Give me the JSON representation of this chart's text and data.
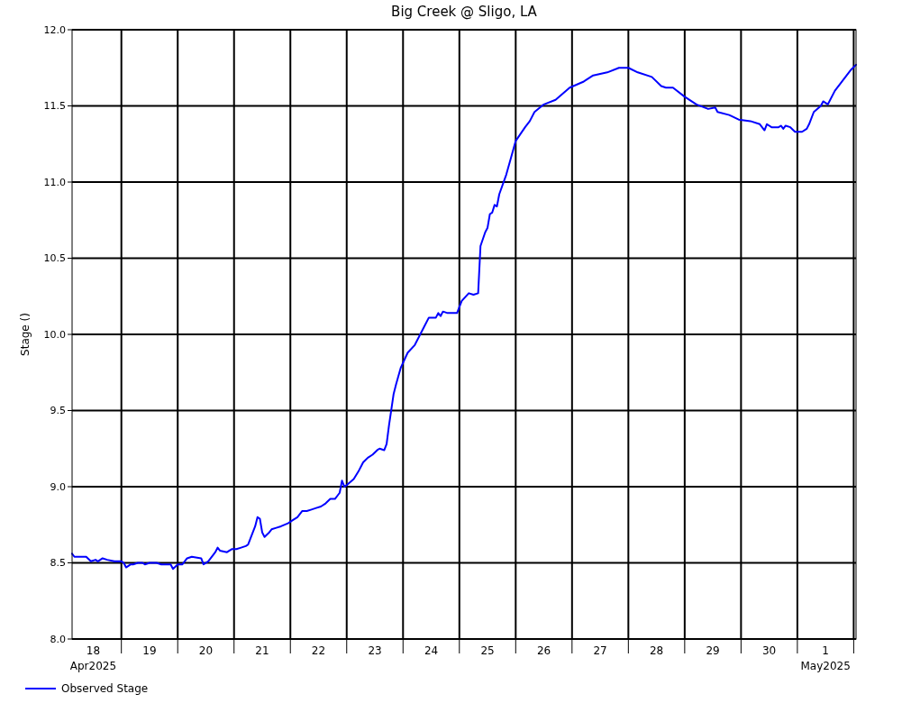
{
  "chart_data": {
    "type": "line",
    "title": "Big Creek @ Sligo, LA",
    "ylabel": "Stage ()",
    "legend": "bottom left",
    "grid": true,
    "marker": "none",
    "line_style": "solid",
    "xlim": [
      "2025-04-18T03:00",
      "2025-05-02T01:00"
    ],
    "xticks": [
      {
        "value": "2025-04-18T12:00",
        "label": "18\nApr2025"
      },
      {
        "value": "2025-04-19T00:00",
        "label": null
      },
      {
        "value": "2025-04-19T12:00",
        "label": "19"
      },
      {
        "value": "2025-04-20T00:00",
        "label": null
      },
      {
        "value": "2025-04-20T12:00",
        "label": "20"
      },
      {
        "value": "2025-04-21T00:00",
        "label": null
      },
      {
        "value": "2025-04-21T12:00",
        "label": "21"
      },
      {
        "value": "2025-04-22T00:00",
        "label": null
      },
      {
        "value": "2025-04-22T12:00",
        "label": "22"
      },
      {
        "value": "2025-04-23T00:00",
        "label": null
      },
      {
        "value": "2025-04-23T12:00",
        "label": "23"
      },
      {
        "value": "2025-04-24T00:00",
        "label": null
      },
      {
        "value": "2025-04-24T12:00",
        "label": "24"
      },
      {
        "value": "2025-04-25T00:00",
        "label": null
      },
      {
        "value": "2025-04-25T12:00",
        "label": "25"
      },
      {
        "value": "2025-04-26T00:00",
        "label": null
      },
      {
        "value": "2025-04-26T12:00",
        "label": "26"
      },
      {
        "value": "2025-04-27T00:00",
        "label": null
      },
      {
        "value": "2025-04-27T12:00",
        "label": "27"
      },
      {
        "value": "2025-04-28T00:00",
        "label": null
      },
      {
        "value": "2025-04-28T12:00",
        "label": "28"
      },
      {
        "value": "2025-04-29T00:00",
        "label": null
      },
      {
        "value": "2025-04-29T12:00",
        "label": "29"
      },
      {
        "value": "2025-04-30T00:00",
        "label": null
      },
      {
        "value": "2025-04-30T12:00",
        "label": "30"
      },
      {
        "value": "2025-05-01T00:00",
        "label": null
      },
      {
        "value": "2025-05-01T12:00",
        "label": "1\nMay2025"
      },
      {
        "value": "2025-05-02T00:00",
        "label": null
      }
    ],
    "ylim": [
      8,
      12
    ],
    "yticks": [
      {
        "value": 8,
        "label": "8.0"
      },
      8.5,
      {
        "value": 9,
        "label": "9.0"
      },
      9.5,
      {
        "value": 10,
        "label": "10.0"
      },
      10.5,
      {
        "value": 11,
        "label": "11.0"
      },
      11.5,
      {
        "value": 12,
        "label": "12.0"
      }
    ],
    "series": [
      {
        "name": "Observed Stage",
        "color": "#0000ff",
        "x": [
          "2025-04-18T03:00",
          "2025-04-18T04:00",
          "2025-04-18T07:00",
          "2025-04-18T09:00",
          "2025-04-18T11:00",
          "2025-04-18T13:00",
          "2025-04-18T14:00",
          "2025-04-18T16:00",
          "2025-04-18T18:00",
          "2025-04-18T21:00",
          "2025-04-19T00:00",
          "2025-04-19T01:00",
          "2025-04-19T02:00",
          "2025-04-19T04:00",
          "2025-04-19T05:00",
          "2025-04-19T07:00",
          "2025-04-19T09:00",
          "2025-04-19T10:00",
          "2025-04-19T12:00",
          "2025-04-19T15:00",
          "2025-04-19T17:00",
          "2025-04-19T19:00",
          "2025-04-19T21:00",
          "2025-04-19T22:00",
          "2025-04-20T00:00",
          "2025-04-20T02:00",
          "2025-04-20T04:00",
          "2025-04-20T06:00",
          "2025-04-20T10:00",
          "2025-04-20T11:00",
          "2025-04-20T13:00",
          "2025-04-20T15:00",
          "2025-04-20T16:00",
          "2025-04-20T17:00",
          "2025-04-20T18:00",
          "2025-04-20T21:00",
          "2025-04-20T23:00",
          "2025-04-21T01:00",
          "2025-04-21T03:00",
          "2025-04-21T05:00",
          "2025-04-21T06:00",
          "2025-04-21T07:00",
          "2025-04-21T09:00",
          "2025-04-21T10:00",
          "2025-04-21T11:00",
          "2025-04-21T12:00",
          "2025-04-21T13:00",
          "2025-04-21T15:00",
          "2025-04-21T16:00",
          "2025-04-21T18:00",
          "2025-04-21T20:00",
          "2025-04-21T23:00",
          "2025-04-22T01:00",
          "2025-04-22T03:00",
          "2025-04-22T05:00",
          "2025-04-22T07:00",
          "2025-04-22T09:00",
          "2025-04-22T11:00",
          "2025-04-22T13:00",
          "2025-04-22T15:00",
          "2025-04-22T17:00",
          "2025-04-22T19:00",
          "2025-04-22T21:00",
          "2025-04-22T22:00",
          "2025-04-22T23:00",
          "2025-04-23T00:00",
          "2025-04-23T03:00",
          "2025-04-23T05:00",
          "2025-04-23T07:00",
          "2025-04-23T09:00",
          "2025-04-23T11:00",
          "2025-04-23T13:00",
          "2025-04-23T14:00",
          "2025-04-23T16:00",
          "2025-04-23T17:00",
          "2025-04-23T18:00",
          "2025-04-23T20:00",
          "2025-04-23T21:00",
          "2025-04-23T23:00",
          "2025-04-24T02:00",
          "2025-04-24T05:00",
          "2025-04-24T09:00",
          "2025-04-24T11:00",
          "2025-04-24T14:00",
          "2025-04-24T15:00",
          "2025-04-24T16:00",
          "2025-04-24T17:00",
          "2025-04-24T19:00",
          "2025-04-24T23:00",
          "2025-04-25T01:00",
          "2025-04-25T04:00",
          "2025-04-25T06:00",
          "2025-04-25T08:00",
          "2025-04-25T09:00",
          "2025-04-25T11:00",
          "2025-04-25T12:00",
          "2025-04-25T13:00",
          "2025-04-25T14:00",
          "2025-04-25T15:00",
          "2025-04-25T16:00",
          "2025-04-25T17:00",
          "2025-04-25T20:00",
          "2025-04-25T22:00",
          "2025-04-26T00:00",
          "2025-04-26T04:00",
          "2025-04-26T06:00",
          "2025-04-26T08:00",
          "2025-04-26T12:00",
          "2025-04-26T17:00",
          "2025-04-26T23:00",
          "2025-04-27T05:00",
          "2025-04-27T09:00",
          "2025-04-27T15:00",
          "2025-04-27T20:00",
          "2025-04-28T00:00",
          "2025-04-28T04:00",
          "2025-04-28T10:00",
          "2025-04-28T14:00",
          "2025-04-28T16:00",
          "2025-04-28T19:00",
          "2025-04-29T00:00",
          "2025-04-29T05:00",
          "2025-04-29T10:00",
          "2025-04-29T13:00",
          "2025-04-29T14:00",
          "2025-04-29T19:00",
          "2025-04-29T23:00",
          "2025-04-30T04:00",
          "2025-04-30T08:00",
          "2025-04-30T10:00",
          "2025-04-30T11:00",
          "2025-04-30T13:00",
          "2025-04-30T16:00",
          "2025-04-30T17:00",
          "2025-04-30T18:00",
          "2025-04-30T19:00",
          "2025-04-30T21:00",
          "2025-04-30T23:00",
          "2025-05-01T02:00",
          "2025-05-01T04:00",
          "2025-05-01T05:00",
          "2025-05-01T07:00",
          "2025-05-01T10:00",
          "2025-05-01T11:00",
          "2025-05-01T13:00",
          "2025-05-01T16:00",
          "2025-05-01T18:00",
          "2025-05-01T21:00",
          "2025-05-01T23:00",
          "2025-05-02T01:00"
        ],
        "values": [
          8.56,
          8.54,
          8.54,
          8.54,
          8.51,
          8.52,
          8.51,
          8.53,
          8.52,
          8.51,
          8.51,
          8.5,
          8.47,
          8.49,
          8.49,
          8.5,
          8.5,
          8.49,
          8.5,
          8.5,
          8.49,
          8.49,
          8.49,
          8.46,
          8.49,
          8.49,
          8.53,
          8.54,
          8.53,
          8.49,
          8.51,
          8.55,
          8.57,
          8.6,
          8.58,
          8.57,
          8.59,
          8.59,
          8.6,
          8.61,
          8.62,
          8.66,
          8.74,
          8.8,
          8.79,
          8.7,
          8.67,
          8.7,
          8.72,
          8.73,
          8.74,
          8.76,
          8.78,
          8.8,
          8.84,
          8.84,
          8.85,
          8.86,
          8.87,
          8.89,
          8.92,
          8.92,
          8.96,
          9.04,
          9.0,
          9.01,
          9.05,
          9.1,
          9.16,
          9.19,
          9.21,
          9.24,
          9.25,
          9.24,
          9.28,
          9.4,
          9.61,
          9.67,
          9.78,
          9.88,
          9.93,
          10.05,
          10.11,
          10.11,
          10.14,
          10.12,
          10.15,
          10.14,
          10.14,
          10.22,
          10.27,
          10.26,
          10.27,
          10.58,
          10.67,
          10.7,
          10.79,
          10.8,
          10.85,
          10.84,
          10.92,
          11.05,
          11.16,
          11.27,
          11.36,
          11.4,
          11.46,
          11.51,
          11.54,
          11.62,
          11.66,
          11.7,
          11.72,
          11.75,
          11.75,
          11.72,
          11.69,
          11.63,
          11.62,
          11.62,
          11.56,
          11.51,
          11.48,
          11.49,
          11.46,
          11.44,
          11.41,
          11.4,
          11.38,
          11.34,
          11.38,
          11.36,
          11.36,
          11.37,
          11.35,
          11.37,
          11.36,
          11.33,
          11.33,
          11.35,
          11.38,
          11.46,
          11.5,
          11.53,
          11.51,
          11.6,
          11.64,
          11.7,
          11.74,
          11.77
        ]
      }
    ]
  }
}
